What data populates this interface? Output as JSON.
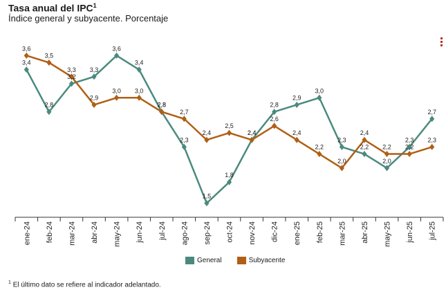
{
  "header": {
    "title": "Tasa anual del IPC",
    "title_sup": "1",
    "subtitle": "Índice general y subyacente. Porcentaje"
  },
  "footnote": {
    "sup": "1",
    "text": "El último dato se refiere al indicador adelantado."
  },
  "colors": {
    "general": "#4a8a7e",
    "subyacente": "#b05f14"
  },
  "chart_data": {
    "type": "line",
    "title": "Tasa anual del IPC",
    "subtitle": "Índice general y subyacente. Porcentaje",
    "categories": [
      "ene-24",
      "feb-24",
      "mar-24",
      "abr-24",
      "may-24",
      "jun-24",
      "jul-24",
      "ago-24",
      "sep-24",
      "oct-24",
      "nov-24",
      "dic-24",
      "ene-25",
      "feb-25",
      "mar-25",
      "abr-25",
      "may-25",
      "jun-25",
      "jul-25"
    ],
    "series": [
      {
        "name": "General",
        "values": [
          3.4,
          2.8,
          3.2,
          3.3,
          3.6,
          3.4,
          2.8,
          2.3,
          1.5,
          1.8,
          2.4,
          2.8,
          2.9,
          3.0,
          2.3,
          2.2,
          2.0,
          2.3,
          2.7
        ]
      },
      {
        "name": "Subyacente",
        "values": [
          3.6,
          3.5,
          3.3,
          2.9,
          3.0,
          3.0,
          2.8,
          2.7,
          2.4,
          2.5,
          2.4,
          2.6,
          2.4,
          2.2,
          2.0,
          2.4,
          2.2,
          2.2,
          2.3
        ]
      }
    ],
    "ylim": [
      1.3,
      3.8
    ],
    "grid": false,
    "legend": "bottom"
  }
}
